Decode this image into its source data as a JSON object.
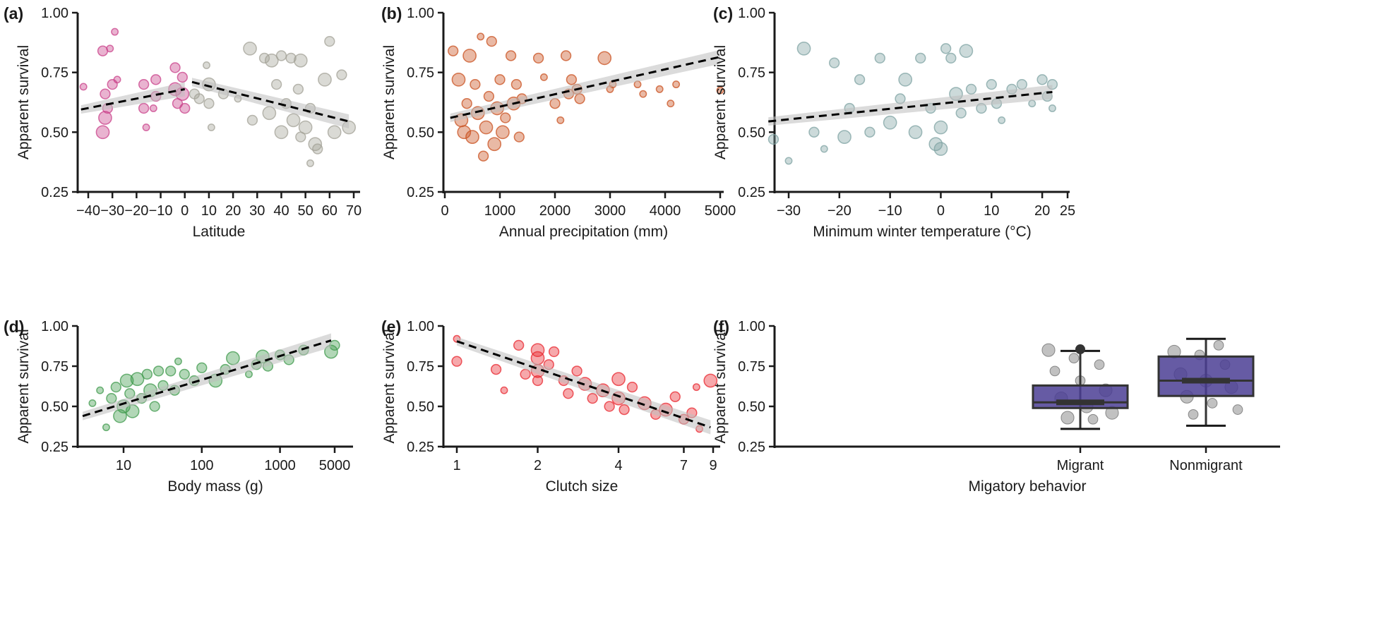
{
  "chart_data": [
    {
      "id": "a",
      "panel_label": "(a)",
      "type": "scatter",
      "xlabel": "Latitude",
      "ylabel": "Apparent survival",
      "xscale": "linear",
      "xticks": [
        -40,
        -30,
        -20,
        -10,
        0,
        10,
        20,
        30,
        40,
        50,
        60,
        70
      ],
      "xtick_labels": [
        "−40",
        "−30",
        "−20",
        "−10",
        "0",
        "10",
        "20",
        "30",
        "40",
        "50",
        "60",
        "70"
      ],
      "yticks": [
        0.25,
        0.5,
        0.75,
        1.0
      ],
      "ytick_labels": [
        "0.25",
        "0.50",
        "0.75",
        "1.00"
      ],
      "ylim": [
        0.25,
        1.0
      ],
      "colors": {
        "south": "#c9408a",
        "north": "#a3a297"
      },
      "split_at": 2,
      "trend": [
        [
          [
            -43,
            0.595
          ],
          [
            0,
            0.68
          ]
        ],
        [
          [
            3,
            0.71
          ],
          [
            68,
            0.545
          ]
        ]
      ],
      "points": [
        [
          -42,
          0.69,
          1
        ],
        [
          -34,
          0.84,
          2
        ],
        [
          -33,
          0.66,
          2
        ],
        [
          -34,
          0.5,
          3
        ],
        [
          -31,
          0.85,
          1
        ],
        [
          -30,
          0.7,
          2
        ],
        [
          -29,
          0.92,
          1
        ],
        [
          -32,
          0.6,
          2
        ],
        [
          -28,
          0.72,
          1
        ],
        [
          -33,
          0.56,
          3
        ],
        [
          -17,
          0.7,
          2
        ],
        [
          -17,
          0.6,
          2
        ],
        [
          -16,
          0.52,
          1
        ],
        [
          -12,
          0.72,
          2
        ],
        [
          -12,
          0.65,
          2
        ],
        [
          -13,
          0.6,
          1
        ],
        [
          -4,
          0.77,
          2
        ],
        [
          -4,
          0.68,
          3
        ],
        [
          -3,
          0.62,
          2
        ],
        [
          -1,
          0.73,
          2
        ],
        [
          -1,
          0.66,
          3
        ],
        [
          0,
          0.6,
          2
        ],
        [
          4,
          0.66,
          2
        ],
        [
          6,
          0.64,
          2
        ],
        [
          9,
          0.78,
          1
        ],
        [
          10,
          0.7,
          3
        ],
        [
          10,
          0.62,
          2
        ],
        [
          11,
          0.52,
          1
        ],
        [
          16,
          0.66,
          2
        ],
        [
          22,
          0.64,
          1
        ],
        [
          27,
          0.85,
          3
        ],
        [
          33,
          0.81,
          2
        ],
        [
          36,
          0.8,
          3
        ],
        [
          40,
          0.82,
          2
        ],
        [
          44,
          0.81,
          2
        ],
        [
          48,
          0.8,
          3
        ],
        [
          28,
          0.55,
          2
        ],
        [
          35,
          0.58,
          3
        ],
        [
          40,
          0.5,
          3
        ],
        [
          42,
          0.62,
          2
        ],
        [
          45,
          0.55,
          3
        ],
        [
          48,
          0.48,
          2
        ],
        [
          50,
          0.52,
          3
        ],
        [
          52,
          0.6,
          2
        ],
        [
          54,
          0.45,
          3
        ],
        [
          55,
          0.43,
          2
        ],
        [
          58,
          0.72,
          3
        ],
        [
          60,
          0.88,
          2
        ],
        [
          62,
          0.5,
          3
        ],
        [
          65,
          0.74,
          2
        ],
        [
          68,
          0.52,
          3
        ],
        [
          52,
          0.37,
          1
        ],
        [
          47,
          0.68,
          2
        ],
        [
          38,
          0.7,
          2
        ]
      ]
    },
    {
      "id": "b",
      "panel_label": "(b)",
      "type": "scatter",
      "xlabel": "Annual precipitation (mm)",
      "ylabel": "Apparent survival",
      "xscale": "linear",
      "xticks": [
        0,
        1000,
        2000,
        3000,
        4000,
        5000
      ],
      "xtick_labels": [
        "0",
        "1000",
        "2000",
        "3000",
        "4000",
        "5000"
      ],
      "yticks": [
        0.25,
        0.5,
        0.75,
        1.0
      ],
      "ytick_labels": [
        "0.25",
        "0.50",
        "0.75",
        "1.00"
      ],
      "ylim": [
        0.25,
        1.0
      ],
      "colors": {
        "points": "#c9501f"
      },
      "trend": [
        [
          [
            100,
            0.56
          ],
          [
            5000,
            0.815
          ]
        ]
      ],
      "points": [
        [
          150,
          0.84,
          2
        ],
        [
          250,
          0.72,
          3
        ],
        [
          300,
          0.55,
          3
        ],
        [
          350,
          0.5,
          3
        ],
        [
          400,
          0.62,
          2
        ],
        [
          450,
          0.82,
          3
        ],
        [
          500,
          0.48,
          3
        ],
        [
          550,
          0.7,
          2
        ],
        [
          600,
          0.58,
          3
        ],
        [
          650,
          0.9,
          1
        ],
        [
          700,
          0.4,
          2
        ],
        [
          750,
          0.52,
          3
        ],
        [
          800,
          0.65,
          2
        ],
        [
          850,
          0.88,
          2
        ],
        [
          900,
          0.45,
          3
        ],
        [
          950,
          0.6,
          3
        ],
        [
          1000,
          0.72,
          2
        ],
        [
          1050,
          0.5,
          3
        ],
        [
          1100,
          0.56,
          2
        ],
        [
          1200,
          0.82,
          2
        ],
        [
          1250,
          0.62,
          3
        ],
        [
          1300,
          0.7,
          2
        ],
        [
          1350,
          0.48,
          2
        ],
        [
          1400,
          0.64,
          2
        ],
        [
          1700,
          0.81,
          2
        ],
        [
          1800,
          0.73,
          1
        ],
        [
          2000,
          0.62,
          2
        ],
        [
          2100,
          0.55,
          1
        ],
        [
          2200,
          0.82,
          2
        ],
        [
          2250,
          0.66,
          2
        ],
        [
          2300,
          0.72,
          2
        ],
        [
          2400,
          0.68,
          2
        ],
        [
          2450,
          0.64,
          2
        ],
        [
          2900,
          0.81,
          3
        ],
        [
          3000,
          0.68,
          1
        ],
        [
          3050,
          0.7,
          1
        ],
        [
          3500,
          0.7,
          1
        ],
        [
          3600,
          0.66,
          1
        ],
        [
          3900,
          0.68,
          1
        ],
        [
          4100,
          0.62,
          1
        ],
        [
          4200,
          0.7,
          1
        ],
        [
          5000,
          0.675,
          1
        ]
      ]
    },
    {
      "id": "c",
      "panel_label": "(c)",
      "type": "scatter",
      "xlabel": "Minimum winter temperature (°C)",
      "ylabel": "Apparent survival",
      "xscale": "linear",
      "xticks": [
        -30,
        -20,
        -10,
        0,
        10,
        20,
        25
      ],
      "xtick_labels": [
        "−30",
        "−20",
        "−10",
        "0",
        "10",
        "20",
        "25"
      ],
      "yticks": [
        0.25,
        0.5,
        0.75,
        1.0
      ],
      "ytick_labels": [
        "0.25",
        "0.50",
        "0.75",
        "1.00"
      ],
      "ylim": [
        0.25,
        1.0
      ],
      "colors": {
        "points": "#7fa3a3"
      },
      "trend": [
        [
          [
            -34,
            0.545
          ],
          [
            22,
            0.668
          ]
        ]
      ],
      "points": [
        [
          -33,
          0.47,
          2
        ],
        [
          -30,
          0.38,
          1
        ],
        [
          -27,
          0.85,
          3
        ],
        [
          -25,
          0.5,
          2
        ],
        [
          -23,
          0.43,
          1
        ],
        [
          -21,
          0.79,
          2
        ],
        [
          -19,
          0.48,
          3
        ],
        [
          -18,
          0.6,
          2
        ],
        [
          -16,
          0.72,
          2
        ],
        [
          -14,
          0.5,
          2
        ],
        [
          -12,
          0.81,
          2
        ],
        [
          -10,
          0.54,
          3
        ],
        [
          -8,
          0.64,
          2
        ],
        [
          -7,
          0.72,
          3
        ],
        [
          -5,
          0.5,
          3
        ],
        [
          -4,
          0.81,
          2
        ],
        [
          -2,
          0.6,
          2
        ],
        [
          -1,
          0.45,
          3
        ],
        [
          0,
          0.52,
          3
        ],
        [
          0,
          0.43,
          3
        ],
        [
          1,
          0.85,
          2
        ],
        [
          2,
          0.81,
          2
        ],
        [
          3,
          0.66,
          3
        ],
        [
          4,
          0.58,
          2
        ],
        [
          5,
          0.84,
          3
        ],
        [
          6,
          0.68,
          2
        ],
        [
          8,
          0.6,
          2
        ],
        [
          10,
          0.7,
          2
        ],
        [
          11,
          0.62,
          2
        ],
        [
          12,
          0.55,
          1
        ],
        [
          14,
          0.68,
          2
        ],
        [
          16,
          0.7,
          2
        ],
        [
          18,
          0.62,
          1
        ],
        [
          20,
          0.72,
          2
        ],
        [
          21,
          0.65,
          2
        ],
        [
          22,
          0.7,
          2
        ],
        [
          22,
          0.6,
          1
        ]
      ]
    },
    {
      "id": "d",
      "panel_label": "(d)",
      "type": "scatter",
      "xlabel": "Body mass (g)",
      "ylabel": "Apparent survival",
      "xscale": "log",
      "xticks": [
        10,
        100,
        1000,
        5000
      ],
      "xtick_labels": [
        "10",
        "100",
        "1000",
        "5000"
      ],
      "yticks": [
        0.25,
        0.5,
        0.75,
        1.0
      ],
      "ytick_labels": [
        "0.25",
        "0.50",
        "0.75",
        "1.00"
      ],
      "ylim": [
        0.25,
        1.0
      ],
      "colors": {
        "points": "#3f9a4c"
      },
      "trend": [
        [
          [
            3,
            0.44
          ],
          [
            4500,
            0.91
          ]
        ]
      ],
      "points": [
        [
          4,
          0.52,
          1
        ],
        [
          5,
          0.6,
          1
        ],
        [
          6,
          0.37,
          1
        ],
        [
          7,
          0.55,
          2
        ],
        [
          8,
          0.62,
          2
        ],
        [
          9,
          0.44,
          3
        ],
        [
          10,
          0.5,
          3
        ],
        [
          11,
          0.66,
          3
        ],
        [
          12,
          0.58,
          2
        ],
        [
          13,
          0.47,
          3
        ],
        [
          15,
          0.67,
          3
        ],
        [
          17,
          0.55,
          2
        ],
        [
          20,
          0.7,
          2
        ],
        [
          22,
          0.6,
          3
        ],
        [
          25,
          0.5,
          2
        ],
        [
          28,
          0.72,
          2
        ],
        [
          32,
          0.63,
          2
        ],
        [
          40,
          0.72,
          2
        ],
        [
          45,
          0.6,
          2
        ],
        [
          50,
          0.78,
          1
        ],
        [
          60,
          0.7,
          2
        ],
        [
          80,
          0.66,
          2
        ],
        [
          100,
          0.74,
          2
        ],
        [
          150,
          0.66,
          3
        ],
        [
          200,
          0.73,
          2
        ],
        [
          250,
          0.8,
          3
        ],
        [
          400,
          0.7,
          1
        ],
        [
          500,
          0.76,
          2
        ],
        [
          600,
          0.81,
          3
        ],
        [
          700,
          0.75,
          2
        ],
        [
          1000,
          0.82,
          2
        ],
        [
          1300,
          0.79,
          2
        ],
        [
          2000,
          0.85,
          2
        ],
        [
          4500,
          0.84,
          3
        ],
        [
          5000,
          0.88,
          2
        ]
      ]
    },
    {
      "id": "e",
      "panel_label": "(e)",
      "type": "scatter",
      "xlabel": "Clutch size",
      "ylabel": "Apparent survival",
      "xscale": "log",
      "xticks": [
        1,
        2,
        4,
        7,
        9
      ],
      "xtick_labels": [
        "1",
        "2",
        "4",
        "7",
        "9"
      ],
      "yticks": [
        0.25,
        0.5,
        0.75,
        1.0
      ],
      "ytick_labels": [
        "0.25",
        "0.50",
        "0.75",
        "1.00"
      ],
      "ylim": [
        0.25,
        1.0
      ],
      "colors": {
        "points": "#e8262e"
      },
      "trend": [
        [
          [
            1,
            0.905
          ],
          [
            8.8,
            0.37
          ]
        ]
      ],
      "points": [
        [
          1,
          0.92,
          1
        ],
        [
          1,
          0.78,
          2
        ],
        [
          1.4,
          0.73,
          2
        ],
        [
          1.5,
          0.6,
          1
        ],
        [
          1.7,
          0.88,
          2
        ],
        [
          1.8,
          0.7,
          2
        ],
        [
          2,
          0.85,
          3
        ],
        [
          2,
          0.8,
          3
        ],
        [
          2,
          0.72,
          3
        ],
        [
          2,
          0.66,
          2
        ],
        [
          2.2,
          0.76,
          2
        ],
        [
          2.3,
          0.84,
          2
        ],
        [
          2.5,
          0.66,
          2
        ],
        [
          2.6,
          0.58,
          2
        ],
        [
          2.8,
          0.72,
          2
        ],
        [
          3,
          0.64,
          3
        ],
        [
          3.2,
          0.55,
          2
        ],
        [
          3.5,
          0.6,
          3
        ],
        [
          3.7,
          0.5,
          2
        ],
        [
          4,
          0.67,
          3
        ],
        [
          4,
          0.55,
          3
        ],
        [
          4.2,
          0.48,
          2
        ],
        [
          4.5,
          0.62,
          2
        ],
        [
          5,
          0.52,
          3
        ],
        [
          5.5,
          0.45,
          2
        ],
        [
          6,
          0.48,
          3
        ],
        [
          6.5,
          0.56,
          2
        ],
        [
          7,
          0.42,
          2
        ],
        [
          7.5,
          0.46,
          2
        ],
        [
          8,
          0.36,
          1
        ],
        [
          8.8,
          0.66,
          3
        ],
        [
          7.8,
          0.62,
          1
        ]
      ]
    },
    {
      "id": "f",
      "panel_label": "(f)",
      "type": "box",
      "xlabel": "Migatory behavior",
      "ylabel": "Apparent survival",
      "categories": [
        "Migrant",
        "Nonmigrant"
      ],
      "yticks": [
        0.25,
        0.5,
        0.75,
        1.0
      ],
      "ytick_labels": [
        "0.25",
        "0.50",
        "0.75",
        "1.00"
      ],
      "ylim": [
        0.25,
        1.0
      ],
      "colors": {
        "box": "#4b3e94",
        "points": "#333333"
      },
      "boxes": [
        {
          "category": "Migrant",
          "q1": 0.49,
          "median": 0.525,
          "q3": 0.63,
          "whisker_low": 0.36,
          "whisker_high": 0.845,
          "outliers": [
            0.855
          ]
        },
        {
          "category": "Nonmigrant",
          "q1": 0.565,
          "median": 0.66,
          "q3": 0.81,
          "whisker_low": 0.38,
          "whisker_high": 0.92,
          "outliers": []
        }
      ],
      "points": [
        [
          0,
          0.85,
          3
        ],
        [
          0,
          0.8,
          2
        ],
        [
          0,
          0.76,
          2
        ],
        [
          0,
          0.72,
          2
        ],
        [
          0,
          0.66,
          2
        ],
        [
          0,
          0.6,
          3
        ],
        [
          0,
          0.55,
          3
        ],
        [
          0,
          0.5,
          3
        ],
        [
          0,
          0.46,
          3
        ],
        [
          0,
          0.43,
          3
        ],
        [
          0,
          0.42,
          2
        ],
        [
          1,
          0.84,
          3
        ],
        [
          1,
          0.82,
          2
        ],
        [
          1,
          0.76,
          2
        ],
        [
          1,
          0.7,
          3
        ],
        [
          1,
          0.66,
          3
        ],
        [
          1,
          0.62,
          3
        ],
        [
          1,
          0.56,
          3
        ],
        [
          1,
          0.52,
          2
        ],
        [
          1,
          0.48,
          2
        ],
        [
          1,
          0.45,
          2
        ],
        [
          1,
          0.88,
          2
        ]
      ]
    }
  ]
}
